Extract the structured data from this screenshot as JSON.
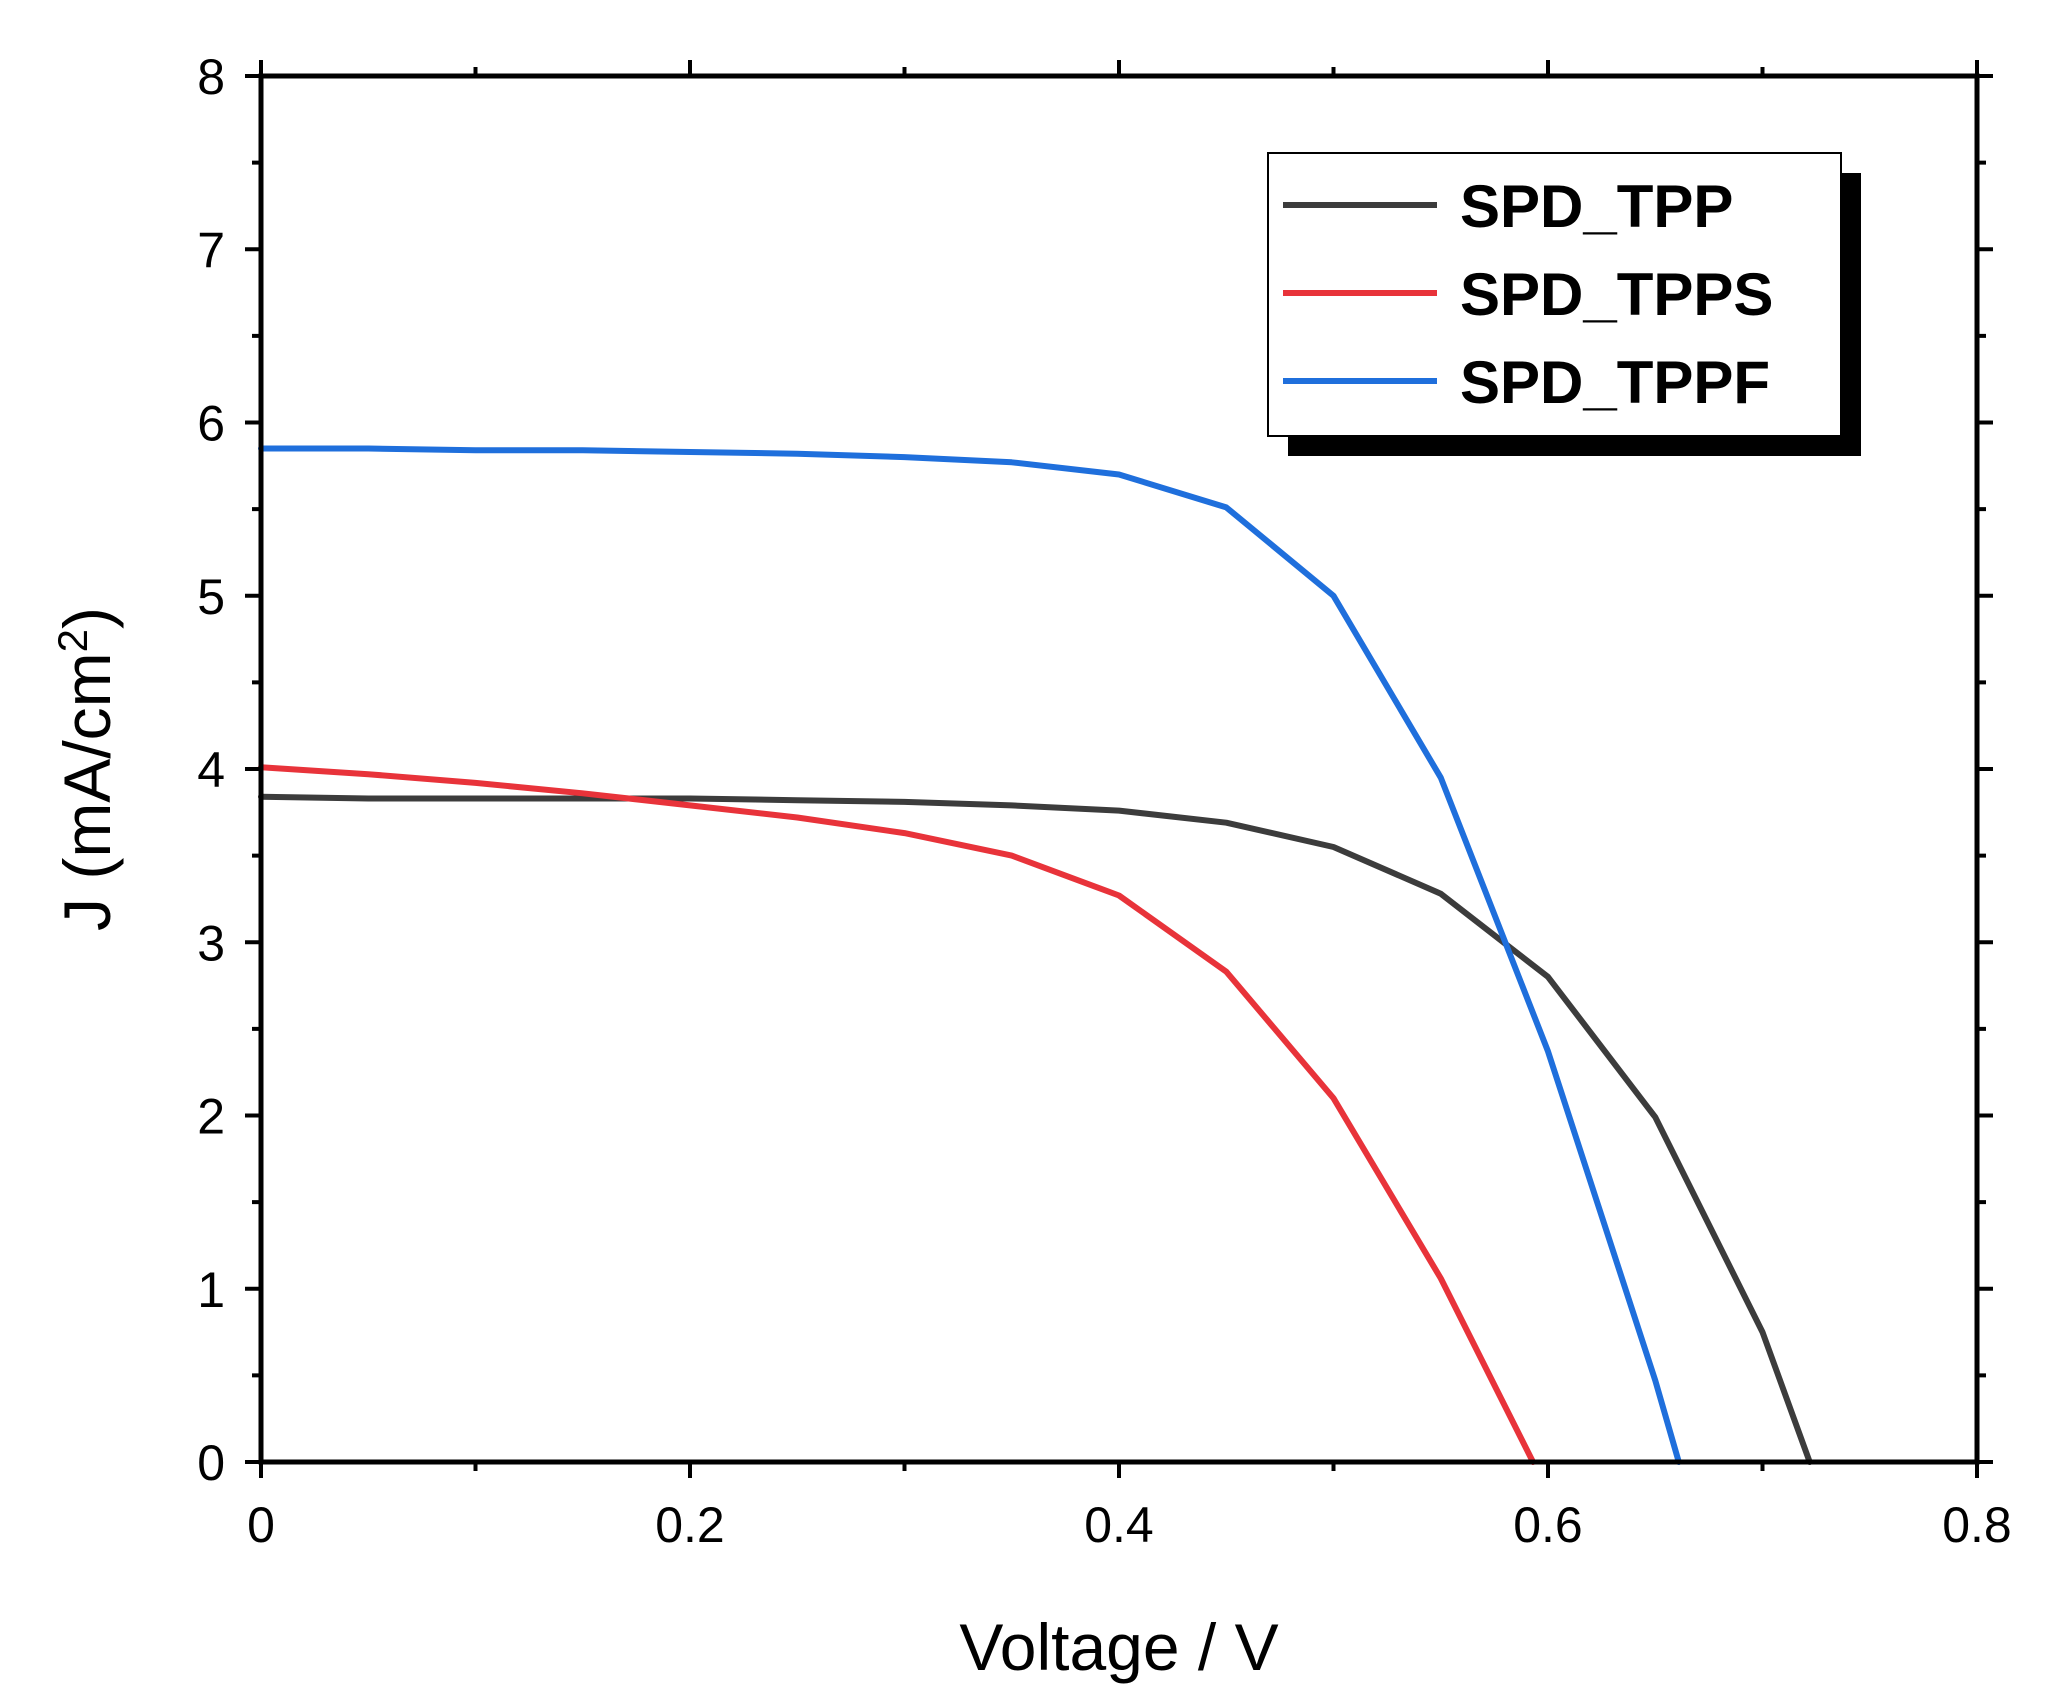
{
  "chart_data": {
    "type": "line",
    "title": "",
    "xlabel": "Voltage / V",
    "ylabel": "J (mA/cm²)",
    "ylabel_parts": {
      "main": "J (mA/cm",
      "sup": "2",
      "close": ")"
    },
    "xlim": [
      0,
      0.8
    ],
    "ylim": [
      0,
      8
    ],
    "x_ticks": [
      0,
      0.2,
      0.4,
      0.6,
      0.8
    ],
    "x_tick_labels": [
      "0",
      "0.2",
      "0.4",
      "0.6",
      "0.8"
    ],
    "y_ticks": [
      0,
      1,
      2,
      3,
      4,
      5,
      6,
      7,
      8
    ],
    "y_tick_labels": [
      "0",
      "1",
      "2",
      "3",
      "4",
      "5",
      "6",
      "7",
      "8"
    ],
    "grid": false,
    "legend_position": "top-right",
    "series": [
      {
        "name": "SPD_TPP",
        "color": "#3c3c3c",
        "x": [
          0,
          0.05,
          0.1,
          0.15,
          0.2,
          0.25,
          0.3,
          0.35,
          0.4,
          0.45,
          0.5,
          0.55,
          0.6,
          0.65,
          0.7,
          0.722
        ],
        "y": [
          3.84,
          3.83,
          3.83,
          3.83,
          3.83,
          3.82,
          3.81,
          3.79,
          3.76,
          3.69,
          3.55,
          3.28,
          2.8,
          1.99,
          0.75,
          0.0
        ]
      },
      {
        "name": "SPD_TPPS",
        "color": "#e8333a",
        "x": [
          0,
          0.05,
          0.1,
          0.15,
          0.2,
          0.25,
          0.3,
          0.35,
          0.4,
          0.45,
          0.5,
          0.55,
          0.593
        ],
        "y": [
          4.01,
          3.97,
          3.92,
          3.86,
          3.79,
          3.72,
          3.63,
          3.5,
          3.27,
          2.83,
          2.1,
          1.06,
          0.0
        ]
      },
      {
        "name": "SPD_TPPF",
        "color": "#1f6fdc",
        "x": [
          0,
          0.05,
          0.1,
          0.15,
          0.2,
          0.25,
          0.3,
          0.35,
          0.4,
          0.45,
          0.5,
          0.55,
          0.6,
          0.65,
          0.661
        ],
        "y": [
          5.85,
          5.85,
          5.84,
          5.84,
          5.83,
          5.82,
          5.8,
          5.77,
          5.7,
          5.51,
          5.0,
          3.95,
          2.37,
          0.47,
          0.0
        ]
      }
    ]
  }
}
